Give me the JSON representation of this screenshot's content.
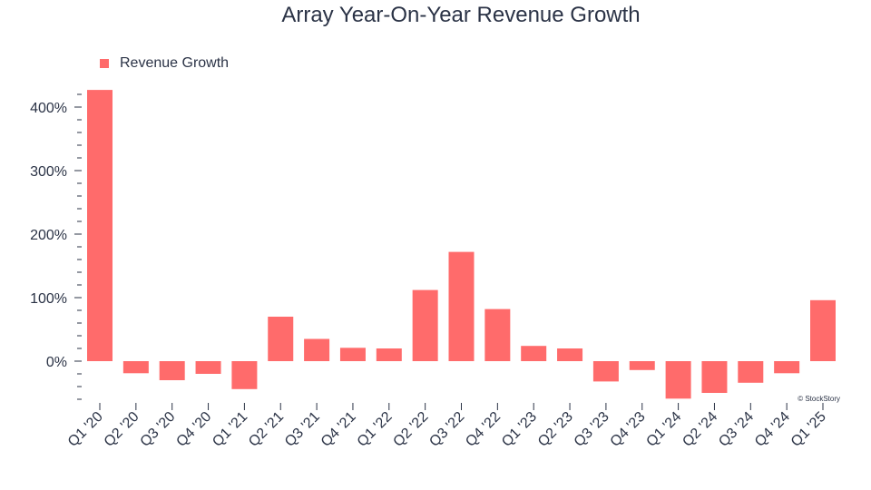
{
  "chart_data": {
    "type": "bar",
    "title": "Array Year-On-Year Revenue Growth",
    "xlabel": "",
    "ylabel": "",
    "legend": {
      "label": "Revenue Growth",
      "position": "top-left"
    },
    "categories": [
      "Q1 '20",
      "Q2 '20",
      "Q3 '20",
      "Q4 '20",
      "Q1 '21",
      "Q2 '21",
      "Q3 '21",
      "Q4 '21",
      "Q1 '22",
      "Q2 '22",
      "Q3 '22",
      "Q4 '22",
      "Q1 '23",
      "Q2 '23",
      "Q3 '23",
      "Q4 '23",
      "Q1 '24",
      "Q2 '24",
      "Q3 '24",
      "Q4 '24",
      "Q1 '25"
    ],
    "series": [
      {
        "name": "Revenue Growth",
        "values": [
          427,
          -19,
          -30,
          -20,
          -44,
          70,
          35,
          21,
          20,
          112,
          172,
          82,
          24,
          20,
          -32,
          -14,
          -59,
          -50,
          -34,
          -19,
          96
        ]
      }
    ],
    "ylim": [
      -62,
      432
    ],
    "yticks": [
      0,
      100,
      200,
      300,
      400
    ],
    "ytick_labels": [
      "0%",
      "100%",
      "200%",
      "300%",
      "400%"
    ],
    "minor_tick_step": 20,
    "bar_color": "#ff6b6b",
    "text_color": "#2b3346",
    "grid": false,
    "watermark": "© StockStory"
  }
}
